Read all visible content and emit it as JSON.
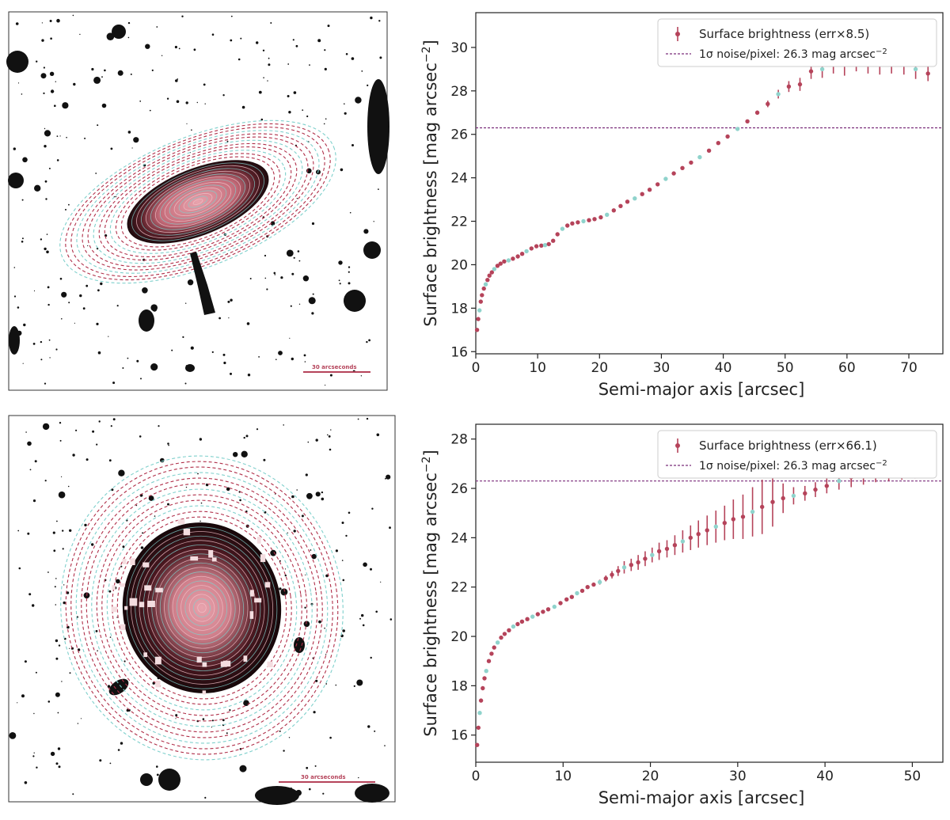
{
  "figure": {
    "panels": [
      {
        "scale_bar_label": "30 arcseconds",
        "galaxy_shape": "edge-on elliptical disk"
      },
      {
        "scale_bar_label": "30 arcseconds",
        "galaxy_shape": "face-on round disk"
      }
    ]
  },
  "colors": {
    "points": "#b5435a",
    "points_alt": "#8fd3cc",
    "noise_line": "#7b2d7b",
    "contour_red": "#b0304a",
    "contour_cyan": "#7fd0cc",
    "galaxy_core": "#d98a95",
    "galaxy_dark": "#2a0e12"
  },
  "chart_data": [
    {
      "type": "scatter",
      "title": "",
      "xlabel": "Semi-major axis [arcsec]",
      "ylabel": "Surface brightness [mag arcsec",
      "ylabel_sup": "−2",
      "ylabel_end": "]",
      "xlim": [
        0,
        75.5
      ],
      "ylim": [
        31.6,
        15.9
      ],
      "xticks": [
        0,
        10,
        20,
        30,
        40,
        50,
        60,
        70
      ],
      "yticks": [
        16,
        18,
        20,
        22,
        24,
        26,
        28,
        30
      ],
      "legend": {
        "position": "top-right",
        "series_label": "Surface brightness (err×8.5)",
        "line_label": "1σ noise/pixel: 26.3 mag arcsec",
        "line_sup": "−2"
      },
      "noise_level": 26.3,
      "series": [
        {
          "name": "Surface brightness (err×8.5)",
          "x": [
            0.2,
            0.4,
            0.6,
            0.8,
            1.0,
            1.3,
            1.6,
            1.9,
            2.2,
            2.6,
            3.0,
            3.5,
            4.0,
            4.6,
            5.3,
            6.0,
            6.8,
            7.5,
            8.2,
            9.0,
            9.8,
            10.6,
            11.2,
            11.8,
            12.5,
            13.2,
            14.0,
            14.8,
            15.6,
            16.5,
            17.4,
            18.3,
            19.2,
            20.2,
            21.2,
            22.3,
            23.4,
            24.5,
            25.7,
            26.9,
            28.1,
            29.4,
            30.7,
            32.0,
            33.4,
            34.8,
            36.2,
            37.7,
            39.2,
            40.7,
            42.3,
            43.9,
            45.5,
            47.2,
            48.9,
            50.6,
            52.4,
            54.2,
            56.0,
            57.8,
            59.6,
            61.5,
            63.4,
            65.3,
            67.2,
            69.2,
            71.1,
            73.1
          ],
          "y": [
            17.0,
            17.5,
            17.9,
            18.3,
            18.6,
            18.9,
            19.1,
            19.3,
            19.5,
            19.65,
            19.8,
            19.95,
            20.05,
            20.15,
            20.2,
            20.28,
            20.38,
            20.5,
            20.62,
            20.75,
            20.85,
            20.88,
            20.9,
            20.95,
            21.1,
            21.4,
            21.65,
            21.8,
            21.9,
            21.95,
            22.0,
            22.05,
            22.1,
            22.18,
            22.3,
            22.5,
            22.7,
            22.9,
            23.05,
            23.25,
            23.45,
            23.7,
            23.95,
            24.2,
            24.45,
            24.7,
            24.95,
            25.25,
            25.6,
            25.9,
            26.25,
            26.6,
            27.0,
            27.4,
            27.85,
            28.2,
            28.3,
            28.9,
            29.0,
            29.5,
            29.6,
            29.9,
            29.7,
            29.6,
            29.6,
            29.3,
            29.0,
            28.8
          ],
          "err": [
            0,
            0,
            0,
            0,
            0,
            0,
            0,
            0,
            0,
            0,
            0,
            0,
            0,
            0,
            0,
            0,
            0,
            0,
            0,
            0,
            0,
            0,
            0,
            0,
            0,
            0,
            0,
            0,
            0,
            0,
            0,
            0,
            0,
            0,
            0,
            0,
            0,
            0,
            0,
            0,
            0,
            0,
            0,
            0,
            0,
            0,
            0,
            0,
            0,
            0,
            0,
            0,
            0.1,
            0.15,
            0.2,
            0.25,
            0.3,
            0.35,
            0.4,
            0.7,
            0.9,
            1.0,
            0.9,
            0.85,
            0.8,
            0.55,
            0.45,
            0.35
          ]
        }
      ]
    },
    {
      "type": "scatter",
      "title": "",
      "xlabel": "Semi-major axis [arcsec]",
      "ylabel": "Surface brightness [mag arcsec",
      "ylabel_sup": "−2",
      "ylabel_end": "]",
      "xlim": [
        0,
        53.5
      ],
      "ylim": [
        28.6,
        14.9
      ],
      "xticks": [
        0,
        10,
        20,
        30,
        40,
        50
      ],
      "yticks": [
        16,
        18,
        20,
        22,
        24,
        26,
        28
      ],
      "legend": {
        "position": "top-right",
        "series_label": "Surface brightness (err×66.1)",
        "line_label": "1σ noise/pixel: 26.3 mag arcsec",
        "line_sup": "−2"
      },
      "noise_level": 26.3,
      "series": [
        {
          "name": "Surface brightness (err×66.1)",
          "x": [
            0.15,
            0.3,
            0.45,
            0.6,
            0.8,
            1.0,
            1.2,
            1.5,
            1.8,
            2.1,
            2.5,
            2.9,
            3.3,
            3.8,
            4.3,
            4.8,
            5.3,
            5.9,
            6.5,
            7.1,
            7.7,
            8.3,
            9.0,
            9.7,
            10.4,
            11.0,
            11.6,
            12.2,
            12.8,
            13.5,
            14.2,
            14.9,
            15.6,
            16.3,
            17.0,
            17.8,
            18.6,
            19.4,
            20.2,
            21.0,
            21.9,
            22.8,
            23.7,
            24.6,
            25.5,
            26.5,
            27.5,
            28.5,
            29.5,
            30.6,
            31.7,
            32.8,
            34.0,
            35.2,
            36.4,
            37.7,
            38.9,
            40.2,
            41.6,
            43.0,
            44.4,
            45.8,
            47.3,
            48.8,
            50.3
          ],
          "y": [
            15.6,
            16.3,
            16.9,
            17.4,
            17.9,
            18.3,
            18.6,
            19.0,
            19.3,
            19.55,
            19.75,
            19.95,
            20.1,
            20.25,
            20.4,
            20.5,
            20.6,
            20.7,
            20.8,
            20.9,
            21.0,
            21.1,
            21.2,
            21.35,
            21.5,
            21.6,
            21.75,
            21.85,
            22.0,
            22.1,
            22.2,
            22.35,
            22.5,
            22.65,
            22.8,
            22.9,
            23.0,
            23.15,
            23.3,
            23.45,
            23.55,
            23.7,
            23.85,
            24.0,
            24.15,
            24.3,
            24.45,
            24.6,
            24.75,
            24.85,
            25.05,
            25.25,
            25.45,
            25.6,
            25.7,
            25.8,
            25.95,
            26.1,
            26.3,
            26.45,
            26.6,
            26.75,
            26.9,
            27.05,
            27.2
          ],
          "err": [
            0,
            0,
            0,
            0,
            0,
            0,
            0,
            0,
            0,
            0,
            0,
            0,
            0,
            0,
            0,
            0,
            0,
            0,
            0,
            0,
            0,
            0,
            0,
            0,
            0,
            0,
            0,
            0,
            0,
            0.05,
            0.1,
            0.12,
            0.15,
            0.2,
            0.25,
            0.25,
            0.3,
            0.3,
            0.3,
            0.35,
            0.35,
            0.4,
            0.45,
            0.5,
            0.55,
            0.6,
            0.65,
            0.7,
            0.8,
            0.9,
            1.0,
            1.1,
            1.0,
            0.6,
            0.35,
            0.3,
            0.3,
            0.3,
            0.35,
            0.4,
            0.45,
            0.5,
            0.6,
            0.7,
            0.8
          ]
        }
      ]
    }
  ]
}
